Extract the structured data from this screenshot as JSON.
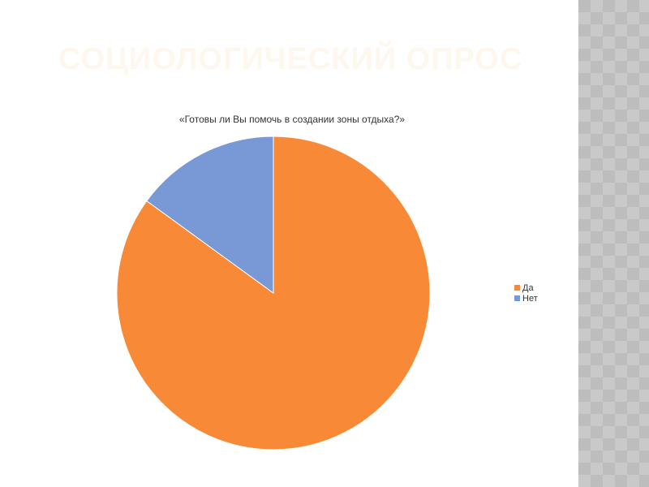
{
  "slide": {
    "title": "СОЦИОЛОГИЧЕСКИЙ ОПРОС"
  },
  "chart_data": {
    "type": "pie",
    "title": "«Готовы ли Вы помочь в создании зоны отдыха?»",
    "categories": [
      "Да",
      "Нет"
    ],
    "values": [
      85,
      15
    ],
    "colors": [
      "#f88a37",
      "#7899d5"
    ],
    "legend": "right"
  }
}
